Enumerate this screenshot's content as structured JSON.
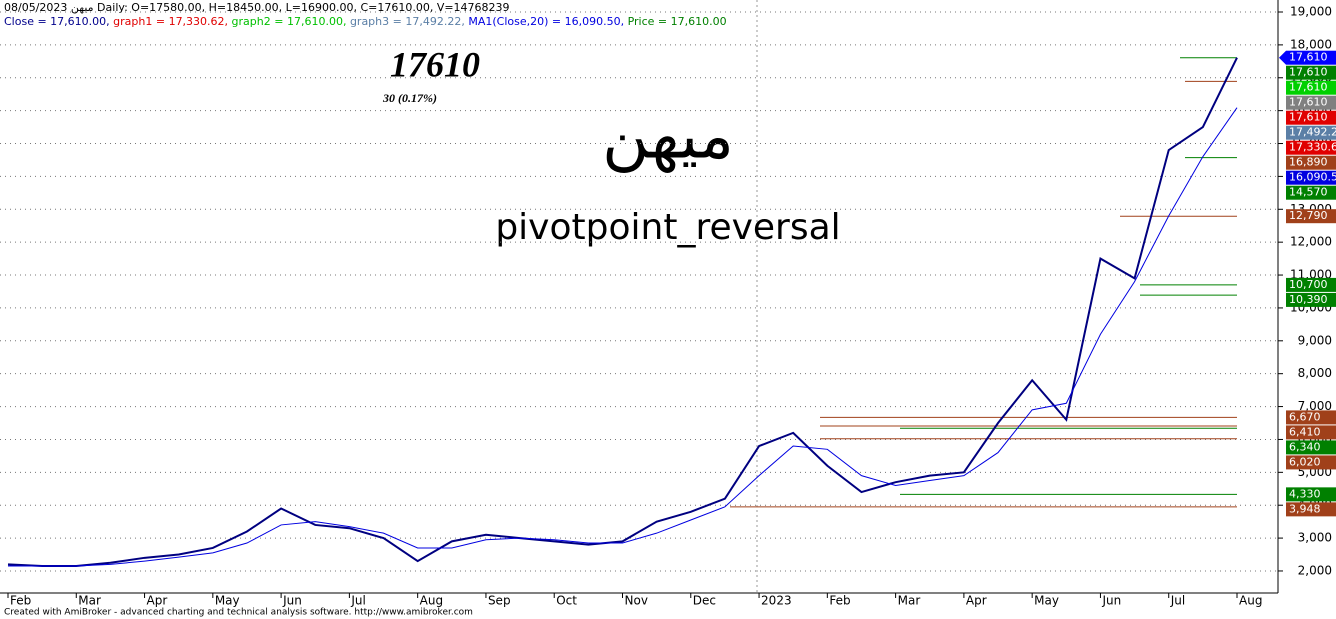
{
  "chart_data": {
    "type": "line",
    "header": "میهن 08/05/2023 Daily: O=17580.00, H=18450.00, L=16900.00, C=17610.00, V=14768239",
    "header2": [
      {
        "text": "Close = 17,610.00, ",
        "color": "#00008b"
      },
      {
        "text": "graph1 = 17,330.62, ",
        "color": "#e00000"
      },
      {
        "text": "graph2 = 17,610.00, ",
        "color": "#00c000"
      },
      {
        "text": "graph3 = 17,492.22, ",
        "color": "#5b7fa6"
      },
      {
        "text": "MA1(Close,20) = 16,090.50, ",
        "color": "#0000e0"
      },
      {
        "text": "Price = 17,610.00",
        "color": "#008000"
      }
    ],
    "big_price": "17610",
    "change": "30  (0.17%)",
    "symbol": "میهن",
    "subtitle": "pivotpoint_reversal",
    "footer": "Created with AmiBroker - advanced charting and technical analysis software. http://www.amibroker.com",
    "categories": [
      "Feb",
      null,
      "Mar",
      null,
      "Apr",
      null,
      "May",
      null,
      "Jun",
      null,
      "Jul",
      null,
      "Aug",
      null,
      "Sep",
      null,
      "Oct",
      null,
      "Nov",
      null,
      "Dec",
      null,
      "2023",
      null,
      "Feb",
      null,
      "Mar",
      null,
      "Apr",
      null,
      "May",
      null,
      "Jun",
      null,
      "Jul",
      null,
      "Aug"
    ],
    "series": [
      {
        "color": "#000080",
        "values": [
          2200,
          2150,
          2150,
          2250,
          2400,
          2500,
          2700,
          3200,
          3900,
          3400,
          3300,
          3000,
          2300,
          2900,
          3100,
          3000,
          2900,
          2800,
          2900,
          3500,
          3800,
          4200,
          5800,
          6200,
          5200,
          4400,
          4700,
          4900,
          5000,
          6500,
          7800,
          6600,
          11500,
          10900,
          14800,
          15500,
          17610
        ]
      },
      {
        "color": "#0000e0",
        "values": [
          2150,
          2150,
          2150,
          2200,
          2300,
          2420,
          2550,
          2850,
          3400,
          3500,
          3350,
          3150,
          2700,
          2700,
          2950,
          3000,
          2950,
          2850,
          2850,
          3150,
          3550,
          3950,
          4900,
          5800,
          5700,
          4900,
          4600,
          4750,
          4900,
          5600,
          6900,
          7100,
          9200,
          10800,
          12800,
          14600,
          16090.5
        ]
      }
    ],
    "ylim": [
      1330,
      19365
    ],
    "yticks": [
      {
        "value": 2000,
        "label": "2,000"
      },
      {
        "value": 3000,
        "label": "3,000"
      },
      {
        "value": 4000,
        "label": "4,000"
      },
      {
        "value": 5000,
        "label": "5,000"
      },
      {
        "value": 6000,
        "label": "6,000"
      },
      {
        "value": 7000,
        "label": "7,000"
      },
      {
        "value": 8000,
        "label": "8,000"
      },
      {
        "value": 9000,
        "label": "9,000"
      },
      {
        "value": 10000,
        "label": "10,000"
      },
      {
        "value": 11000,
        "label": "11,000"
      },
      {
        "value": 12000,
        "label": "12,000"
      },
      {
        "value": 13000,
        "label": "13,000"
      },
      {
        "value": 14000,
        "label": "14,000"
      },
      {
        "value": 15000,
        "label": "15,000"
      },
      {
        "value": 16000,
        "label": "16,000"
      },
      {
        "value": 17000,
        "label": "17,000"
      },
      {
        "value": 18000,
        "label": "18,000"
      },
      {
        "value": 19000,
        "label": "19,000"
      }
    ],
    "grid": true,
    "levels": [
      {
        "value": 17610,
        "label": "17,610",
        "color": "#0000ff"
      },
      {
        "value": 17610,
        "label": "17,610",
        "color": "#008000"
      },
      {
        "value": 17610,
        "label": "17,610",
        "color": "#00d000"
      },
      {
        "value": 17610,
        "label": "17,610",
        "color": "#808080"
      },
      {
        "value": 17610,
        "label": "17,610",
        "color": "#e00000"
      },
      {
        "value": 17492.2,
        "label": "17,492.2",
        "color": "#5b7fa6"
      },
      {
        "value": 17330.6,
        "label": "17,330.6",
        "color": "#e00000"
      },
      {
        "value": 16890,
        "label": "16,890",
        "color": "#a0401a"
      },
      {
        "value": 16090.5,
        "label": "16,090.5",
        "color": "#0000e0"
      },
      {
        "value": 14570,
        "label": "14,570",
        "color": "#008000"
      },
      {
        "value": 12790,
        "label": "12,790",
        "color": "#a0401a"
      },
      {
        "value": 10700,
        "label": "10,700",
        "color": "#008000"
      },
      {
        "value": 10390,
        "label": "10,390",
        "color": "#008000"
      },
      {
        "value": 6670,
        "label": "6,670",
        "color": "#a0401a"
      },
      {
        "value": 6410,
        "label": "6,410",
        "color": "#a0401a"
      },
      {
        "value": 6340,
        "label": "6,340",
        "color": "#008000"
      },
      {
        "value": 6020,
        "label": "6,020",
        "color": "#a0401a"
      },
      {
        "value": 4330,
        "label": "4,330",
        "color": "#008000"
      },
      {
        "value": 3948,
        "label": "3,948",
        "color": "#a0401a"
      }
    ]
  }
}
